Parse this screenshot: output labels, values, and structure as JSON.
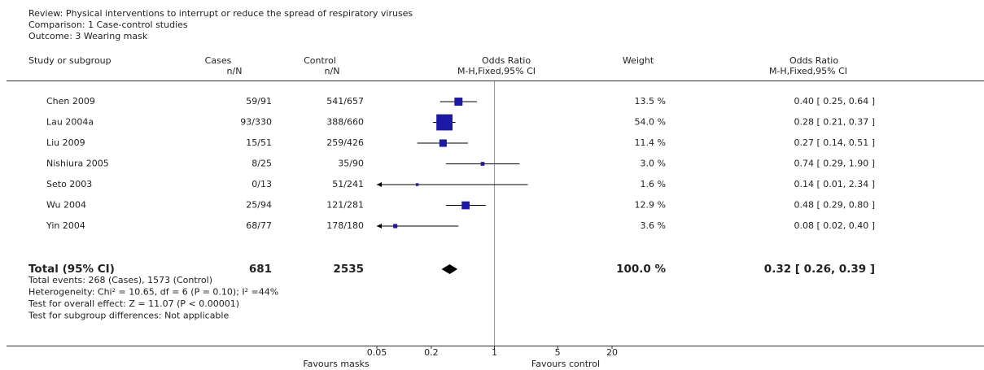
{
  "chart_data": {
    "type": "forest",
    "review": "Review:  Physical interventions to interrupt or reduce the spread of respiratory viruses",
    "comparison": "Comparison:  1 Case-control studies",
    "outcome": "Outcome:  3 Wearing mask",
    "headers": {
      "study": "Study or subgroup",
      "cases": "Cases",
      "cases_sub": "n/N",
      "control": "Control",
      "control_sub": "n/N",
      "or": "Odds Ratio",
      "or_sub": "M-H,Fixed,95% CI",
      "weight": "Weight",
      "or2": "Odds Ratio",
      "or2_sub": "M-H,Fixed,95% CI"
    },
    "studies": [
      {
        "name": "Chen 2009",
        "cases": "59/91",
        "control": "541/657",
        "weight": 13.5,
        "weight_label": "13.5 %",
        "or": 0.4,
        "lo": 0.25,
        "hi": 0.64,
        "ci_label": "0.40 [ 0.25, 0.64 ]"
      },
      {
        "name": "Lau 2004a",
        "cases": "93/330",
        "control": "388/660",
        "weight": 54.0,
        "weight_label": "54.0 %",
        "or": 0.28,
        "lo": 0.21,
        "hi": 0.37,
        "ci_label": "0.28 [ 0.21, 0.37 ]"
      },
      {
        "name": "Liu 2009",
        "cases": "15/51",
        "control": "259/426",
        "weight": 11.4,
        "weight_label": "11.4 %",
        "or": 0.27,
        "lo": 0.14,
        "hi": 0.51,
        "ci_label": "0.27 [ 0.14, 0.51 ]"
      },
      {
        "name": "Nishiura 2005",
        "cases": "8/25",
        "control": "35/90",
        "weight": 3.0,
        "weight_label": "3.0 %",
        "or": 0.74,
        "lo": 0.29,
        "hi": 1.9,
        "ci_label": "0.74 [ 0.29, 1.90 ]"
      },
      {
        "name": "Seto 2003",
        "cases": "0/13",
        "control": "51/241",
        "weight": 1.6,
        "weight_label": "1.6 %",
        "or": 0.14,
        "lo": 0.01,
        "hi": 2.34,
        "ci_label": "0.14 [ 0.01, 2.34 ]"
      },
      {
        "name": "Wu 2004",
        "cases": "25/94",
        "control": "121/281",
        "weight": 12.9,
        "weight_label": "12.9 %",
        "or": 0.48,
        "lo": 0.29,
        "hi": 0.8,
        "ci_label": "0.48 [ 0.29, 0.80 ]"
      },
      {
        "name": "Yin 2004",
        "cases": "68/77",
        "control": "178/180",
        "weight": 3.6,
        "weight_label": "3.6 %",
        "or": 0.08,
        "lo": 0.02,
        "hi": 0.4,
        "ci_label": "0.08 [ 0.02, 0.40 ]"
      }
    ],
    "total": {
      "name": "Total (95% CI)",
      "cases": "681",
      "control": "2535",
      "weight": 100.0,
      "weight_label": "100.0 %",
      "or": 0.32,
      "lo": 0.26,
      "hi": 0.39,
      "ci_label": "0.32 [ 0.26, 0.39 ]"
    },
    "notes": [
      "Total events: 268 (Cases), 1573 (Control)",
      "Heterogeneity: Chi² = 10.65, df = 6 (P = 0.10); I² =44%",
      "Test for overall effect: Z = 11.07 (P < 0.00001)",
      "Test for subgroup differences: Not applicable"
    ],
    "xlim": [
      0.05,
      20
    ],
    "xticks": [
      0.05,
      0.2,
      1,
      5,
      20
    ],
    "log_x": true,
    "favours_left": "Favours masks",
    "favours_right": "Favours control",
    "color": "#1a1aa6"
  }
}
